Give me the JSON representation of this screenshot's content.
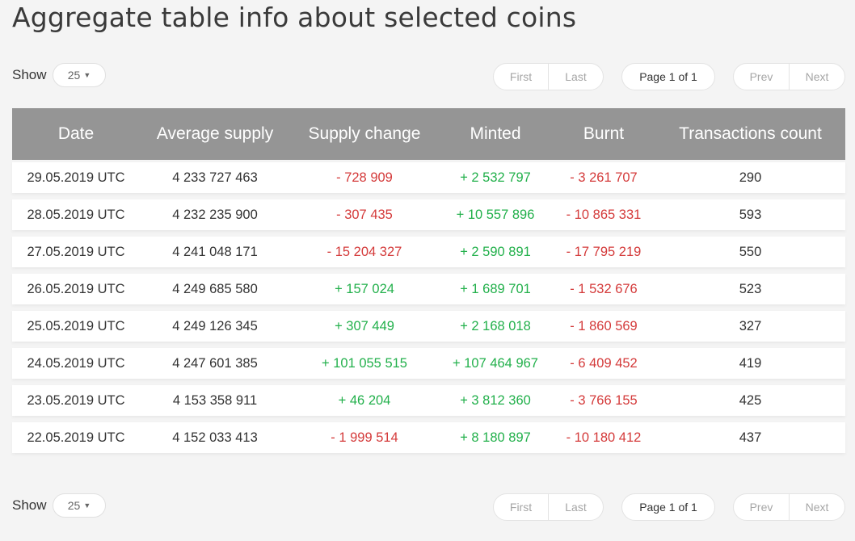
{
  "title": "Aggregate table info about selected coins",
  "pagination": {
    "show_label": "Show",
    "page_size": "25",
    "first": "First",
    "last": "Last",
    "page_info": "Page 1 of 1",
    "prev": "Prev",
    "next": "Next"
  },
  "columns": [
    "Date",
    "Average supply",
    "Supply change",
    "Minted",
    "Burnt",
    "Transactions count"
  ],
  "rows": [
    [
      "29.05.2019 UTC",
      "4 233 727 463",
      "- 728 909",
      "+ 2 532 797",
      "- 3 261 707",
      "290"
    ],
    [
      "28.05.2019 UTC",
      "4 232 235 900",
      "- 307 435",
      "+ 10 557 896",
      "- 10 865 331",
      "593"
    ],
    [
      "27.05.2019 UTC",
      "4 241 048 171",
      "- 15 204 327",
      "+ 2 590 891",
      "- 17 795 219",
      "550"
    ],
    [
      "26.05.2019 UTC",
      "4 249 685 580",
      "+ 157 024",
      "+ 1 689 701",
      "- 1 532 676",
      "523"
    ],
    [
      "25.05.2019 UTC",
      "4 249 126 345",
      "+ 307 449",
      "+ 2 168 018",
      "- 1 860 569",
      "327"
    ],
    [
      "24.05.2019 UTC",
      "4 247 601 385",
      "+ 101 055 515",
      "+ 107 464 967",
      "- 6 409 452",
      "419"
    ],
    [
      "23.05.2019 UTC",
      "4 153 358 911",
      "+ 46 204",
      "+ 3 812 360",
      "- 3 766 155",
      "425"
    ],
    [
      "22.05.2019 UTC",
      "4 152 033 413",
      "- 1 999 514",
      "+ 8 180 897",
      "- 10 180 412",
      "437"
    ]
  ],
  "colors": {
    "positive": "#22b04b",
    "negative": "#d43a3a",
    "header_bg": "#959595"
  }
}
